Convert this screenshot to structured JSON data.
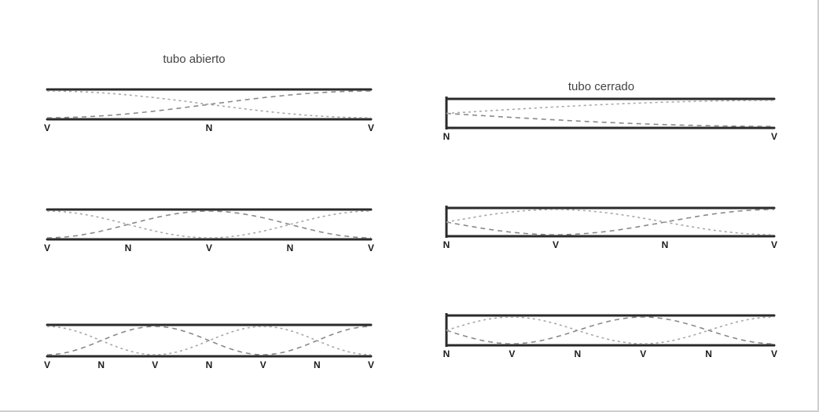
{
  "columns": [
    {
      "title": "tubo abierto",
      "kind": "open",
      "tubes": [
        {
          "harmonic": 1,
          "labels": [
            "V",
            "N",
            "V"
          ]
        },
        {
          "harmonic": 2,
          "labels": [
            "V",
            "N",
            "V",
            "N",
            "V"
          ]
        },
        {
          "harmonic": 3,
          "labels": [
            "V",
            "N",
            "V",
            "N",
            "V",
            "N",
            "V"
          ]
        }
      ]
    },
    {
      "title": "tubo cerrado",
      "kind": "closed",
      "tubes": [
        {
          "harmonic": 1,
          "labels": [
            "N",
            "V"
          ]
        },
        {
          "harmonic": 3,
          "labels": [
            "N",
            "V",
            "N",
            "V"
          ]
        },
        {
          "harmonic": 5,
          "labels": [
            "N",
            "V",
            "N",
            "V",
            "N",
            "V"
          ]
        }
      ]
    }
  ],
  "colors": {
    "wall": "#2a2a2a",
    "wave_primary": "#8a8a8a",
    "wave_secondary": "#a8a8a8",
    "label": "#1c1c1c"
  }
}
